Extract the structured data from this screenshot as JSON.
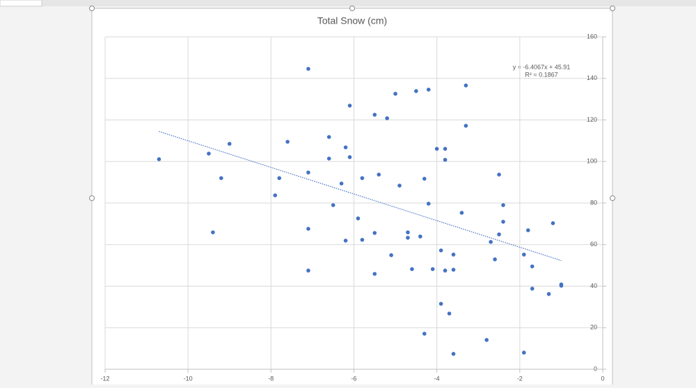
{
  "chart_data": {
    "type": "scatter",
    "title": "Total Snow (cm)",
    "x": [
      -10.7,
      -9.5,
      -9.2,
      -9.0,
      -9.4,
      -7.9,
      -7.8,
      -7.6,
      -7.1,
      -7.1,
      -7.1,
      -7.1,
      -6.6,
      -6.6,
      -6.5,
      -6.3,
      -6.2,
      -6.2,
      -6.1,
      -6.1,
      -5.9,
      -5.8,
      -5.8,
      -5.5,
      -5.5,
      -5.5,
      -5.4,
      -5.2,
      -5.1,
      -5.0,
      -4.9,
      -4.6,
      -4.5,
      -4.4,
      -4.3,
      -4.3,
      -4.2,
      -4.2,
      -4.7,
      -4.7,
      -4.1,
      -4.0,
      -3.9,
      -3.9,
      -3.8,
      -3.8,
      -3.8,
      -3.7,
      -3.6,
      -3.6,
      -3.6,
      -3.4,
      -3.3,
      -3.3,
      -2.8,
      -2.7,
      -2.6,
      -2.5,
      -2.5,
      -2.4,
      -2.4,
      -1.9,
      -1.9,
      -1.8,
      -1.7,
      -1.7,
      -1.3,
      -1.2,
      -1.0,
      -1.0
    ],
    "series": [
      {
        "color": "#4472c4",
        "values": [
          101.1,
          103.8,
          92.0,
          108.5,
          65.9,
          83.7,
          92.0,
          109.5,
          144.6,
          94.7,
          67.6,
          47.5,
          111.8,
          101.4,
          79.0,
          89.4,
          106.8,
          61.9,
          126.9,
          102.1,
          72.6,
          92.0,
          62.3,
          122.5,
          65.6,
          45.9,
          93.7,
          120.8,
          54.9,
          132.6,
          88.4,
          48.2,
          133.9,
          63.9,
          91.7,
          17.1,
          134.6,
          79.7,
          65.9,
          63.3,
          48.2,
          106.1,
          57.2,
          31.5,
          106.1,
          100.8,
          47.5,
          26.8,
          55.2,
          47.9,
          7.4,
          75.3,
          136.6,
          117.2,
          14.1,
          61.3,
          52.9,
          93.7,
          64.9,
          79.0,
          71.0,
          55.2,
          8.0,
          66.9,
          49.5,
          38.8,
          36.2,
          70.3,
          40.8,
          40.2
        ]
      }
    ],
    "trendline": {
      "slope": -6.4067,
      "intercept": 45.91,
      "color": "#4472c4",
      "equation": "y = -6.4067x + 45.91",
      "r_squared": "R² = 0.1867"
    },
    "xlim": [
      -12,
      0
    ],
    "xticks": [
      -12,
      -10,
      -8,
      -6,
      -4,
      -2,
      0
    ],
    "ylim": [
      0,
      160
    ],
    "yticks": [
      0,
      20,
      40,
      60,
      80,
      100,
      120,
      140,
      160
    ],
    "grid": true
  }
}
